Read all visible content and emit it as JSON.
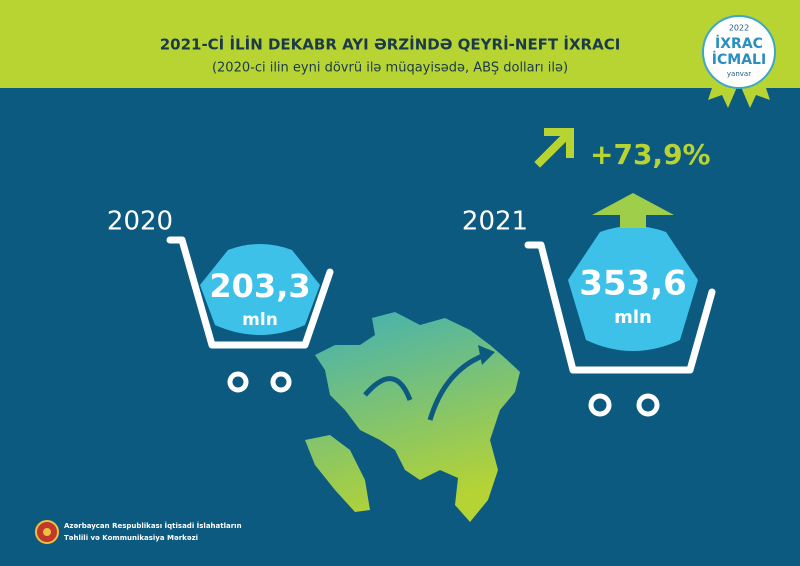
{
  "header": {
    "title": "2021-Cİ İLİN DEKABR AYI ƏRZİNDƏ QEYRİ-NEFT İXRACI",
    "subtitle": "(2020-ci ilin eyni dövrü ilə müqayisədə, ABŞ dolları ilə)"
  },
  "badge": {
    "year": "2022",
    "line1": "İXRAC",
    "line2": "İCMALI",
    "month": "yanvar"
  },
  "items": [
    {
      "year": "2020",
      "value": "203,3",
      "unit": "mln"
    },
    {
      "year": "2021",
      "value": "353,6",
      "unit": "mln"
    }
  ],
  "change": "+73,9%",
  "footer": {
    "line1": "Azərbaycan Respublikası İqtisadi İslahatların",
    "line2": "Təhlili və Kommunikasiya Mərkəzi"
  }
}
